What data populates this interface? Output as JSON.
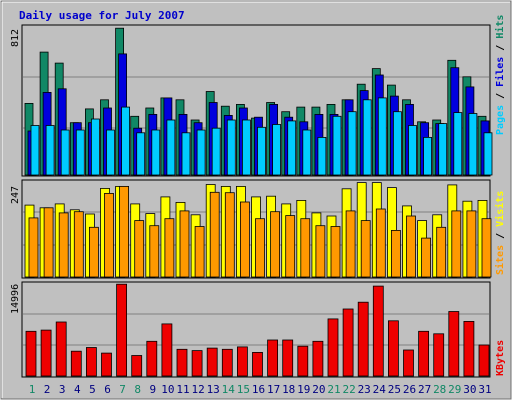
{
  "title": "Daily usage for July 2007",
  "colors": {
    "frame_bg": "#c0c0c0",
    "title": "#0000cc",
    "pages": "#00ccff",
    "files": "#0000dd",
    "hits": "#118866",
    "visits": "#ffff00",
    "sites": "#ff9900",
    "kbytes": "#ee0000",
    "weekend_day_label": "#118866",
    "weekday_label": "#000080"
  },
  "chart_data": [
    {
      "type": "bar",
      "name": "hits-files-pages",
      "ymax_label": "812",
      "ylim": [
        0,
        812
      ],
      "legend": {
        "pages": "Pages",
        "files": "Files",
        "hits": "Hits",
        "sep": " / "
      },
      "categories": [
        "1",
        "2",
        "3",
        "4",
        "5",
        "6",
        "7",
        "8",
        "9",
        "10",
        "11",
        "12",
        "13",
        "14",
        "15",
        "16",
        "17",
        "18",
        "19",
        "20",
        "21",
        "22",
        "23",
        "24",
        "25",
        "26",
        "27",
        "28",
        "29",
        "30",
        "31"
      ],
      "series": [
        {
          "name": "Hits",
          "values": [
            390,
            670,
            610,
            285,
            360,
            410,
            800,
            320,
            365,
            420,
            410,
            300,
            455,
            375,
            385,
            310,
            395,
            345,
            370,
            370,
            385,
            410,
            495,
            580,
            490,
            410,
            290,
            300,
            625,
            535,
            320
          ]
        },
        {
          "name": "Files",
          "values": [
            240,
            450,
            470,
            285,
            285,
            365,
            660,
            255,
            330,
            420,
            330,
            285,
            395,
            325,
            365,
            315,
            385,
            315,
            290,
            330,
            330,
            410,
            460,
            545,
            430,
            385,
            285,
            280,
            585,
            480,
            295
          ]
        },
        {
          "name": "Pages",
          "values": [
            270,
            270,
            245,
            245,
            305,
            245,
            370,
            230,
            245,
            300,
            230,
            245,
            255,
            300,
            300,
            260,
            275,
            295,
            245,
            205,
            320,
            345,
            410,
            420,
            345,
            270,
            205,
            280,
            340,
            335,
            230
          ]
        }
      ]
    },
    {
      "type": "bar",
      "name": "visits-sites",
      "ymax_label": "247",
      "ylim": [
        0,
        247
      ],
      "legend": {
        "sites": "Sites",
        "visits": "Visits",
        "sep": " / "
      },
      "categories": [
        "1",
        "2",
        "3",
        "4",
        "5",
        "6",
        "7",
        "8",
        "9",
        "10",
        "11",
        "12",
        "13",
        "14",
        "15",
        "16",
        "17",
        "18",
        "19",
        "20",
        "21",
        "22",
        "23",
        "24",
        "25",
        "26",
        "27",
        "28",
        "29",
        "30",
        "31"
      ],
      "series": [
        {
          "name": "Visits",
          "values": [
            185,
            178,
            188,
            173,
            162,
            228,
            233,
            188,
            163,
            206,
            192,
            160,
            238,
            233,
            233,
            206,
            208,
            188,
            197,
            165,
            157,
            227,
            243,
            243,
            230,
            183,
            145,
            160,
            237,
            195,
            197
          ]
        },
        {
          "name": "Sites",
          "values": [
            152,
            178,
            165,
            168,
            128,
            215,
            233,
            145,
            132,
            150,
            170,
            130,
            218,
            217,
            193,
            150,
            168,
            158,
            150,
            132,
            130,
            170,
            145,
            175,
            120,
            157,
            100,
            128,
            170,
            170,
            150
          ]
        }
      ]
    },
    {
      "type": "bar",
      "name": "kbytes",
      "ymax_label": "14996",
      "ylim": [
        0,
        14996
      ],
      "legend": {
        "kbytes": "KBytes"
      },
      "categories": [
        "1",
        "2",
        "3",
        "4",
        "5",
        "6",
        "7",
        "8",
        "9",
        "10",
        "11",
        "12",
        "13",
        "14",
        "15",
        "16",
        "17",
        "18",
        "19",
        "20",
        "21",
        "22",
        "23",
        "24",
        "25",
        "26",
        "27",
        "28",
        "29",
        "30",
        "31"
      ],
      "series": [
        {
          "name": "KBytes",
          "values": [
            7200,
            7400,
            8700,
            4000,
            4600,
            3700,
            14800,
            3300,
            5600,
            8400,
            4300,
            4100,
            4500,
            4300,
            4700,
            3800,
            5800,
            5800,
            4800,
            5600,
            9200,
            10800,
            11900,
            14500,
            8900,
            4200,
            7200,
            6800,
            10400,
            8800,
            5000
          ]
        }
      ]
    }
  ]
}
